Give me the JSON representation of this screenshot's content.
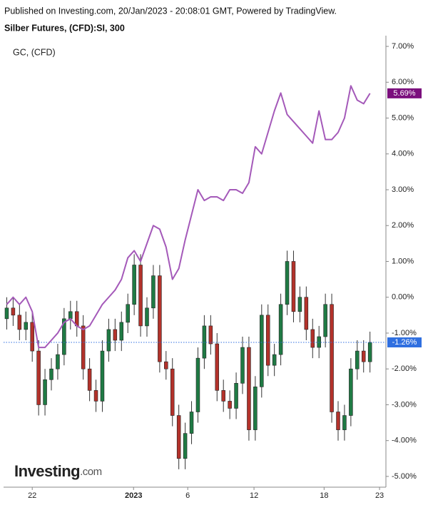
{
  "header": "Published on Investing.com, 20/Jan/2023 - 20:08:01 GMT, Powered by TradingView.",
  "logo": {
    "brand": "Investing",
    "suffix": ".com"
  },
  "chart_data": {
    "type": "candlestick",
    "title": "Silber Futures, (CFD):SI, 300",
    "candles": {
      "up_color": "#1f7a44",
      "down_color": "#b3322b",
      "open": [
        -0.6,
        -0.3,
        -0.5,
        -0.9,
        -0.7,
        -1.5,
        -3.0,
        -2.3,
        -2.0,
        -1.6,
        -0.6,
        -0.4,
        -0.8,
        -2.0,
        -2.6,
        -2.9,
        -1.5,
        -0.9,
        -1.2,
        -0.7,
        -0.2,
        0.9,
        -0.8,
        -0.3,
        0.6,
        -1.8,
        -2.0,
        -3.3,
        -4.5,
        -3.8,
        -3.2,
        -1.7,
        -0.8,
        -1.3,
        -2.6,
        -2.9,
        -3.1,
        -2.4,
        -1.4,
        -3.7,
        -2.5,
        -0.5,
        -1.9,
        -1.6,
        -0.2,
        1.0,
        -0.4,
        0.0,
        -0.9,
        -1.4,
        -1.1,
        -0.2,
        -3.2,
        -3.7,
        -3.3,
        -2.0,
        -1.5,
        -1.8
      ],
      "high": [
        0.0,
        0.0,
        -0.2,
        -0.4,
        -0.4,
        -1.2,
        -2.0,
        -1.7,
        -1.3,
        -0.3,
        -0.1,
        -0.1,
        -0.5,
        -1.7,
        -2.3,
        -1.2,
        -0.6,
        -0.6,
        -0.4,
        0.1,
        1.2,
        1.2,
        0.0,
        0.9,
        0.9,
        -1.5,
        -1.7,
        -3.0,
        -3.5,
        -2.9,
        -1.4,
        -0.5,
        -0.5,
        -1.0,
        -2.3,
        -2.6,
        -2.1,
        -1.1,
        -1.1,
        -2.2,
        -0.2,
        -0.2,
        -1.3,
        0.1,
        1.3,
        1.3,
        0.3,
        0.3,
        -0.6,
        -0.8,
        0.1,
        0.1,
        -2.9,
        -3.0,
        -1.7,
        -1.2,
        -1.2,
        -0.96
      ],
      "low": [
        -0.9,
        -0.8,
        -1.2,
        -1.2,
        -1.8,
        -3.3,
        -3.3,
        -2.6,
        -2.3,
        -1.9,
        -0.9,
        -1.1,
        -2.3,
        -2.9,
        -3.2,
        -3.2,
        -1.8,
        -1.5,
        -1.5,
        -1.0,
        -0.5,
        -1.1,
        -1.1,
        -0.6,
        -2.1,
        -2.3,
        -3.6,
        -4.8,
        -4.8,
        -4.1,
        -3.5,
        -2.0,
        -1.6,
        -2.9,
        -3.2,
        -3.4,
        -3.4,
        -2.7,
        -4.0,
        -4.0,
        -2.8,
        -2.2,
        -2.2,
        -1.9,
        -0.5,
        -0.7,
        -0.7,
        -1.2,
        -1.7,
        -1.7,
        -1.4,
        -3.5,
        -4.0,
        -4.0,
        -3.6,
        -2.3,
        -2.1,
        -2.1
      ],
      "close": [
        -0.3,
        -0.5,
        -0.9,
        -0.7,
        -1.5,
        -3.0,
        -2.3,
        -2.0,
        -1.6,
        -0.6,
        -0.4,
        -0.8,
        -2.0,
        -2.6,
        -2.9,
        -1.5,
        -0.9,
        -1.2,
        -0.7,
        -0.2,
        0.9,
        -0.8,
        -0.3,
        0.6,
        -1.8,
        -2.0,
        -3.3,
        -4.5,
        -3.8,
        -3.2,
        -1.7,
        -0.8,
        -1.3,
        -2.6,
        -2.9,
        -3.1,
        -2.4,
        -1.4,
        -3.7,
        -2.5,
        -0.5,
        -1.9,
        -1.6,
        -0.2,
        1.0,
        -0.4,
        0.0,
        -0.9,
        -1.4,
        -1.1,
        -0.2,
        -3.2,
        -3.7,
        -3.3,
        -2.0,
        -1.5,
        -1.8,
        -1.26
      ],
      "last_color": "#2f6fe0",
      "last_value_label": "-1.26%"
    },
    "series": [
      {
        "name": "GC,  (CFD)",
        "color": "#a459b9",
        "last_color": "#7b0f7d",
        "last_value_label": "5.69%",
        "values": [
          -0.2,
          0.0,
          -0.2,
          0.0,
          -0.4,
          -1.4,
          -1.4,
          -1.2,
          -1.0,
          -0.7,
          -0.6,
          -0.8,
          -0.9,
          -0.8,
          -0.5,
          -0.2,
          0.0,
          0.2,
          0.5,
          1.1,
          1.3,
          1.0,
          1.5,
          2.0,
          1.9,
          1.4,
          0.5,
          0.8,
          1.6,
          2.3,
          3.0,
          2.7,
          2.8,
          2.8,
          2.7,
          3.0,
          3.0,
          2.9,
          3.2,
          4.2,
          4.0,
          4.6,
          5.2,
          5.7,
          5.1,
          4.9,
          4.7,
          4.5,
          4.3,
          5.2,
          4.4,
          4.4,
          4.6,
          5.0,
          5.9,
          5.5,
          5.4,
          5.69
        ]
      }
    ],
    "xlim": [
      0,
      60
    ],
    "xticks": [
      {
        "value": 4.5,
        "label": "22"
      },
      {
        "value": 20.4,
        "label": "2023"
      },
      {
        "value": 28.9,
        "label": "6"
      },
      {
        "value": 39.3,
        "label": "12"
      },
      {
        "value": 50.3,
        "label": "18"
      },
      {
        "value": 59,
        "label": "23"
      }
    ],
    "ylim": [
      -5.3,
      7.2
    ],
    "yticks": [
      {
        "value": -5,
        "label": "-5.00%"
      },
      {
        "value": -4,
        "label": "-4.00%"
      },
      {
        "value": -3,
        "label": "-3.00%"
      },
      {
        "value": -2,
        "label": "-2.00%"
      },
      {
        "value": -1,
        "label": "-1.00%"
      },
      {
        "value": 0,
        "label": "0.00%"
      },
      {
        "value": 1,
        "label": "1.00%"
      },
      {
        "value": 2,
        "label": "2.00%"
      },
      {
        "value": 3,
        "label": "3.00%"
      },
      {
        "value": 4,
        "label": "4.00%"
      },
      {
        "value": 5,
        "label": "5.00%"
      },
      {
        "value": 6,
        "label": "6.00%"
      },
      {
        "value": 7,
        "label": "7.00%"
      }
    ]
  }
}
